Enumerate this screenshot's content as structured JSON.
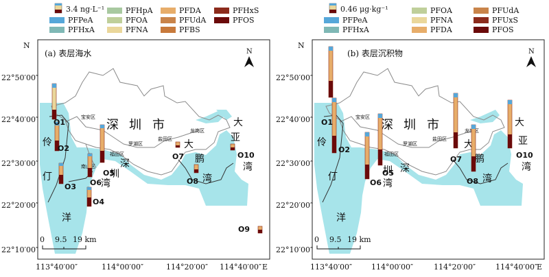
{
  "legend_colors": {
    "PFPeA": "#56a7d9",
    "PFHxA": "#7fb8b5",
    "PFHpA": "#a8c9a0",
    "PFOA": "#bfcf9a",
    "PFNA": "#ead79b",
    "PFDA": "#e7ad6a",
    "PFUdA": "#c9844a",
    "PFBS": "#c87a3c",
    "PFHxS": "#8c2b1c",
    "PFUxS": "#8c2b1c",
    "PFOS": "#6b0a0a"
  },
  "colors": {
    "sea": "#a7e4ea",
    "land": "#ffffff",
    "boundary": "#8a8a8a",
    "frame": "#222222"
  },
  "icons": [
    "north-arrow-icon",
    "stacked-bar-legend-icon"
  ],
  "panels": [
    {
      "label": "(a) 表层海水",
      "legend": {
        "scale_text": "3.4 ng·L⁻¹",
        "items": [
          "PFPeA",
          "PFHxA",
          "PFHpA",
          "PFOA",
          "PFNA",
          "PFUdA",
          "PFDA",
          "PFUdA",
          "PFBS",
          "PFHxS",
          "PFOS"
        ],
        "layout": [
          [
            "scale",
            "PFHpA",
            "PFDA",
            "PFHxS"
          ],
          [
            "PFPeA",
            "PFOA",
            "PFUdA",
            "PFOS"
          ],
          [
            "PFHxA",
            "PFNA",
            "PFBS",
            ""
          ]
        ]
      },
      "sites": [
        "O1",
        "O2",
        "O3",
        "O4",
        "O5",
        "O6",
        "O7",
        "O8",
        "O9",
        "O10"
      ]
    },
    {
      "label": "(b) 表层沉积物",
      "legend": {
        "scale_text": "0.46 μg·kg⁻¹",
        "layout": [
          [
            "scale",
            "PFOA",
            "PFUdA"
          ],
          [
            "PFPeA",
            "PFNA",
            "PFUxS"
          ],
          [
            "PFHxA",
            "PFDA",
            "PFOS"
          ]
        ]
      },
      "sites": [
        "O1",
        "O2",
        "O5",
        "O6",
        "O7",
        "O8",
        "O10"
      ]
    }
  ],
  "axes": {
    "y_ticks": [
      "22°50′00″",
      "22°40′00″",
      "22°30′00″",
      "22°20′00″",
      "22°10′00″"
    ],
    "x_ticks_left": [
      "113°40′00″",
      "114°00′00″",
      "114°20′00″",
      "114°40′00″"
    ],
    "x_ticks_right": [
      "113°40′00″",
      "114°00′00″",
      "114°20′00″",
      "114°40′00″"
    ],
    "north_label": "N",
    "east_label": "E"
  },
  "scale_bar": {
    "labels": [
      "0",
      "9.5",
      "19 km"
    ]
  },
  "place_labels": {
    "big": [
      "深",
      "圳",
      "市",
      "伶",
      "仃",
      "洋",
      "大",
      "亚",
      "湾",
      "大",
      "鹏",
      "湾",
      "深",
      "圳",
      "湾"
    ],
    "districts": [
      "宝安区",
      "南山区",
      "福田区",
      "罗湖区",
      "盐田区",
      "龙岗区"
    ]
  }
}
